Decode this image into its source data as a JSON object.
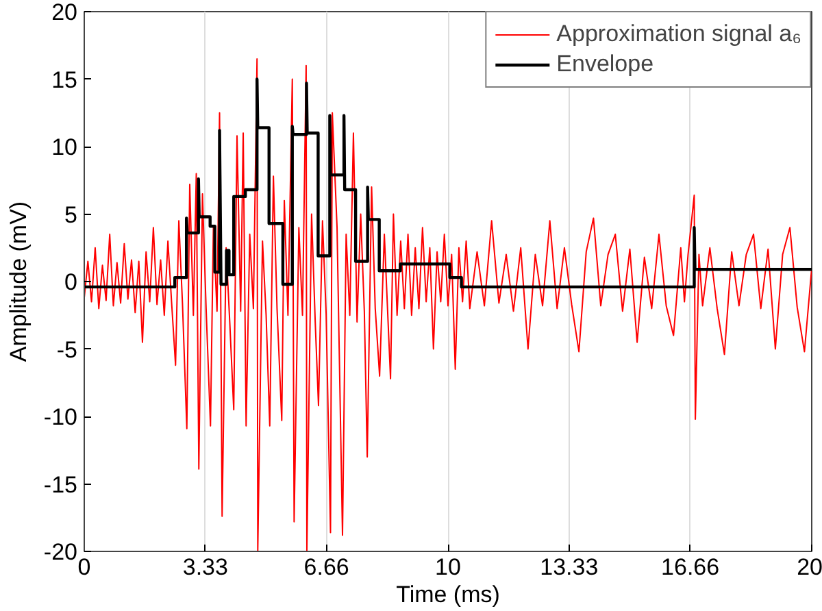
{
  "chart_data": {
    "type": "line",
    "xlabel": "Time (ms)",
    "ylabel": "Amplitude (mV)",
    "xlim": [
      0,
      20
    ],
    "xticks": [
      0,
      3.33,
      6.66,
      10,
      13.33,
      16.66,
      20
    ],
    "ylim": [
      -20,
      20
    ],
    "yticks": [
      -20,
      -15,
      -10,
      -5,
      0,
      5,
      10,
      15,
      20
    ],
    "grid": "x",
    "legend": "top right",
    "series": [
      {
        "name": "Approximation signal a₆",
        "color": "#ff0000",
        "line_style": "solid",
        "x": [
          0,
          0.1,
          0.2,
          0.3,
          0.4,
          0.5,
          0.6,
          0.7,
          0.8,
          0.9,
          1.0,
          1.1,
          1.2,
          1.3,
          1.4,
          1.5,
          1.6,
          1.7,
          1.8,
          1.9,
          2.0,
          2.1,
          2.2,
          2.3,
          2.4,
          2.51,
          2.6,
          2.7,
          2.82,
          2.9,
          3.0,
          3.08,
          3.15,
          3.25,
          3.35,
          3.47,
          3.55,
          3.65,
          3.72,
          3.79,
          3.9,
          4.0,
          4.11,
          4.2,
          4.3,
          4.37,
          4.45,
          4.55,
          4.65,
          4.75,
          4.77,
          4.9,
          5.0,
          5.1,
          5.2,
          5.3,
          5.43,
          5.5,
          5.6,
          5.72,
          5.77,
          5.9,
          6.0,
          6.1,
          6.12,
          6.25,
          6.35,
          6.44,
          6.55,
          6.65,
          6.77,
          6.82,
          6.95,
          7.1,
          7.2,
          7.3,
          7.4,
          7.5,
          7.6,
          7.7,
          7.78,
          7.9,
          8.0,
          8.12,
          8.25,
          8.42,
          8.5,
          8.6,
          8.7,
          8.8,
          8.9,
          9.0,
          9.1,
          9.2,
          9.3,
          9.4,
          9.5,
          9.6,
          9.7,
          9.8,
          9.9,
          10.0,
          10.1,
          10.2,
          10.3,
          10.4,
          10.5,
          10.6,
          10.8,
          11.0,
          11.2,
          11.4,
          11.6,
          11.8,
          12.0,
          12.2,
          12.4,
          12.6,
          12.8,
          13.0,
          13.2,
          13.4,
          13.6,
          13.8,
          14.0,
          14.2,
          14.4,
          14.6,
          14.8,
          15.0,
          15.2,
          15.4,
          15.6,
          15.8,
          16.0,
          16.2,
          16.4,
          16.5,
          16.6,
          16.77,
          16.8,
          16.9,
          17.0,
          17.2,
          17.4,
          17.6,
          17.8,
          18.0,
          18.2,
          18.4,
          18.6,
          18.8,
          19.0,
          19.2,
          19.4,
          19.6,
          19.8,
          20
        ],
        "values": [
          -1.2,
          1.5,
          -1.5,
          2.5,
          -2,
          1.2,
          -1.4,
          3.5,
          -1.8,
          1.4,
          -1.6,
          2.8,
          -1.3,
          1.6,
          -2.3,
          1.5,
          -4.5,
          2.2,
          -1.5,
          4.0,
          -1.7,
          1.6,
          -2.5,
          3.0,
          -1.5,
          -6.2,
          4.5,
          -1.6,
          -10.9,
          7.2,
          -2.5,
          8.0,
          -13.9,
          6.5,
          -2.0,
          -10.7,
          4.0,
          -2.2,
          12.5,
          -17.4,
          2.5,
          -3,
          -9.5,
          10.8,
          -2.2,
          11.0,
          -10.7,
          3.5,
          -2,
          16.5,
          -20,
          3.0,
          -2.5,
          -10.7,
          7.8,
          -2,
          -10.3,
          6.0,
          -2.5,
          15.0,
          -17.8,
          4,
          -2.5,
          16.0,
          -20,
          5,
          -3,
          -9.2,
          4.5,
          -2.4,
          -18.6,
          12.5,
          4,
          -18.8,
          3.5,
          -2.5,
          11.0,
          -3,
          5,
          -2.2,
          -13.0,
          7.0,
          -2,
          -7.0,
          3.5,
          -7.2,
          5.0,
          -2.5,
          3,
          -2,
          3.5,
          -2.5,
          2.5,
          -2.0,
          4,
          -1.5,
          2.5,
          -5,
          2.2,
          -1.5,
          3.5,
          -1.8,
          2,
          -6.5,
          2.5,
          -1.5,
          3,
          -2,
          2.2,
          -1.8,
          4.5,
          -1.6,
          2.0,
          -2.2,
          2.5,
          -5,
          2.0,
          -1.8,
          4.5,
          -2.0,
          2.5,
          -1.7,
          -5.2,
          2.2,
          4.7,
          -1.8,
          2.0,
          3.5,
          -2.2,
          2.4,
          -4.5,
          1.8,
          -2.0,
          3.5,
          -1.8,
          -4.0,
          2.5,
          -1.5,
          2,
          6.4,
          -10.2,
          2,
          -1.8,
          2.5,
          -2,
          -5.4,
          2.2,
          -1.8,
          2.0,
          3.5,
          -2.0,
          2.4,
          -5,
          2.0,
          4.0,
          -1.9,
          -5.2,
          1.0
        ]
      },
      {
        "name": "Envelope",
        "color": "#000000",
        "line_style": "solid",
        "x": [
          0,
          2.49,
          2.49,
          2.81,
          2.81,
          2.83,
          3.14,
          3.14,
          3.16,
          3.46,
          3.46,
          3.59,
          3.59,
          3.72,
          3.72,
          3.76,
          3.91,
          3.91,
          3.98,
          3.98,
          4.11,
          4.11,
          4.43,
          4.43,
          4.75,
          4.75,
          4.77,
          5.08,
          5.08,
          5.46,
          5.46,
          5.72,
          5.72,
          5.74,
          6.11,
          6.11,
          6.13,
          6.43,
          6.43,
          6.75,
          6.75,
          6.77,
          7.14,
          7.14,
          7.16,
          7.46,
          7.46,
          7.79,
          7.79,
          7.81,
          8.11,
          8.11,
          8.69,
          8.69,
          10.05,
          10.05,
          10.37,
          10.37,
          16.77,
          16.77,
          16.79,
          20
        ],
        "values": [
          -0.4,
          -0.4,
          0.3,
          0.3,
          4.7,
          3.6,
          3.6,
          7.6,
          4.8,
          4.8,
          4.1,
          4.1,
          0.7,
          0.7,
          11.2,
          -0.2,
          -0.2,
          2.3,
          2.3,
          0.5,
          0.5,
          6.3,
          6.3,
          6.8,
          6.8,
          15.0,
          11.4,
          11.4,
          4.3,
          4.3,
          -0.2,
          -0.2,
          11.5,
          10.9,
          10.9,
          14.7,
          11.0,
          11.0,
          1.9,
          1.9,
          12.3,
          7.9,
          7.9,
          12.3,
          6.8,
          6.8,
          1.5,
          1.5,
          7.0,
          4.6,
          4.6,
          0.8,
          0.8,
          1.3,
          1.3,
          0.3,
          0.3,
          -0.4,
          -0.4,
          4.0,
          0.9,
          0.9
        ]
      }
    ]
  }
}
